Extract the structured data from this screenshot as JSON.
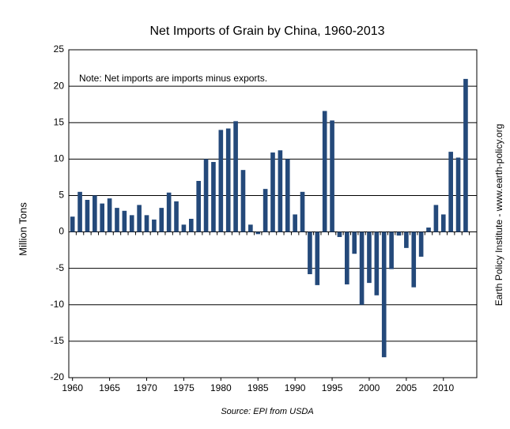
{
  "chart_data": {
    "type": "bar",
    "title": "Net Imports of Grain by China, 1960-2013",
    "y_label": "Million Tons",
    "annotation": "Note: Net imports are imports minus exports.",
    "side_text": "Earth Policy Institute - www.earth-policy.org",
    "source": "Source: EPI from USDA",
    "x": [
      1960,
      1961,
      1962,
      1963,
      1964,
      1965,
      1966,
      1967,
      1968,
      1969,
      1970,
      1971,
      1972,
      1973,
      1974,
      1975,
      1976,
      1977,
      1978,
      1979,
      1980,
      1981,
      1982,
      1983,
      1984,
      1985,
      1986,
      1987,
      1988,
      1989,
      1990,
      1991,
      1992,
      1993,
      1994,
      1995,
      1996,
      1997,
      1998,
      1999,
      2000,
      2001,
      2002,
      2003,
      2004,
      2005,
      2006,
      2007,
      2008,
      2009,
      2010,
      2011,
      2012,
      2013
    ],
    "values": [
      2.1,
      5.5,
      4.4,
      5.0,
      3.9,
      4.6,
      3.3,
      2.9,
      2.3,
      3.7,
      2.3,
      1.7,
      3.3,
      5.4,
      4.2,
      1.0,
      1.8,
      7.0,
      10.0,
      9.6,
      14.0,
      14.2,
      15.2,
      8.5,
      1.0,
      -0.3,
      5.9,
      10.9,
      11.2,
      10.0,
      2.4,
      5.5,
      -5.8,
      -7.3,
      16.6,
      15.3,
      -0.7,
      -7.2,
      -3.0,
      -10.0,
      -7.0,
      -8.7,
      -17.2,
      -5.1,
      -0.5,
      -2.2,
      -7.6,
      -3.4,
      0.6,
      3.7,
      2.4,
      11.0,
      10.2,
      21.0
    ],
    "color": "#24497a",
    "xlim": [
      1959.5,
      2014.5
    ],
    "xticks": [
      1960,
      1965,
      1970,
      1975,
      1980,
      1985,
      1990,
      1995,
      2000,
      2005,
      2010
    ],
    "ylim": [
      -20,
      25
    ],
    "yticks": [
      -20,
      -15,
      -10,
      -5,
      0,
      5,
      10,
      15,
      20,
      25
    ],
    "grid": true
  }
}
